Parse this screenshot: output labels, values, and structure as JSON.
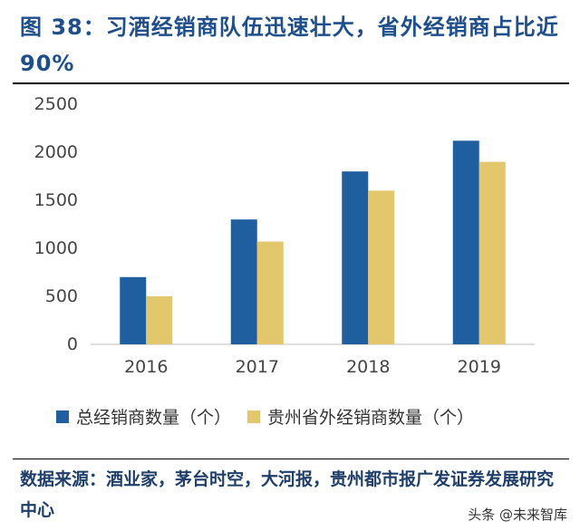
{
  "figure": {
    "title": "图 38：习酒经销商队伍迅速壮大，省外经销商占比近90%"
  },
  "chart_data": {
    "type": "bar",
    "categories": [
      "2016",
      "2017",
      "2018",
      "2019"
    ],
    "series": [
      {
        "name": "总经销商数量（个）",
        "values": [
          700,
          1300,
          1800,
          2120
        ],
        "color": "#1f5fa0"
      },
      {
        "name": "贵州省外经销商数量（个）",
        "values": [
          500,
          1070,
          1600,
          1900
        ],
        "color": "#e3c76c"
      }
    ],
    "ylim": [
      0,
      2500
    ],
    "yticks": [
      0,
      500,
      1000,
      1500,
      2000,
      2500
    ],
    "legend_position": "bottom",
    "grid": false
  },
  "source": {
    "text": "数据来源：酒业家，茅台时空，大河报，贵州都市报广发证券发展研究中心"
  },
  "watermark": {
    "text": "头条 @未来智库"
  }
}
